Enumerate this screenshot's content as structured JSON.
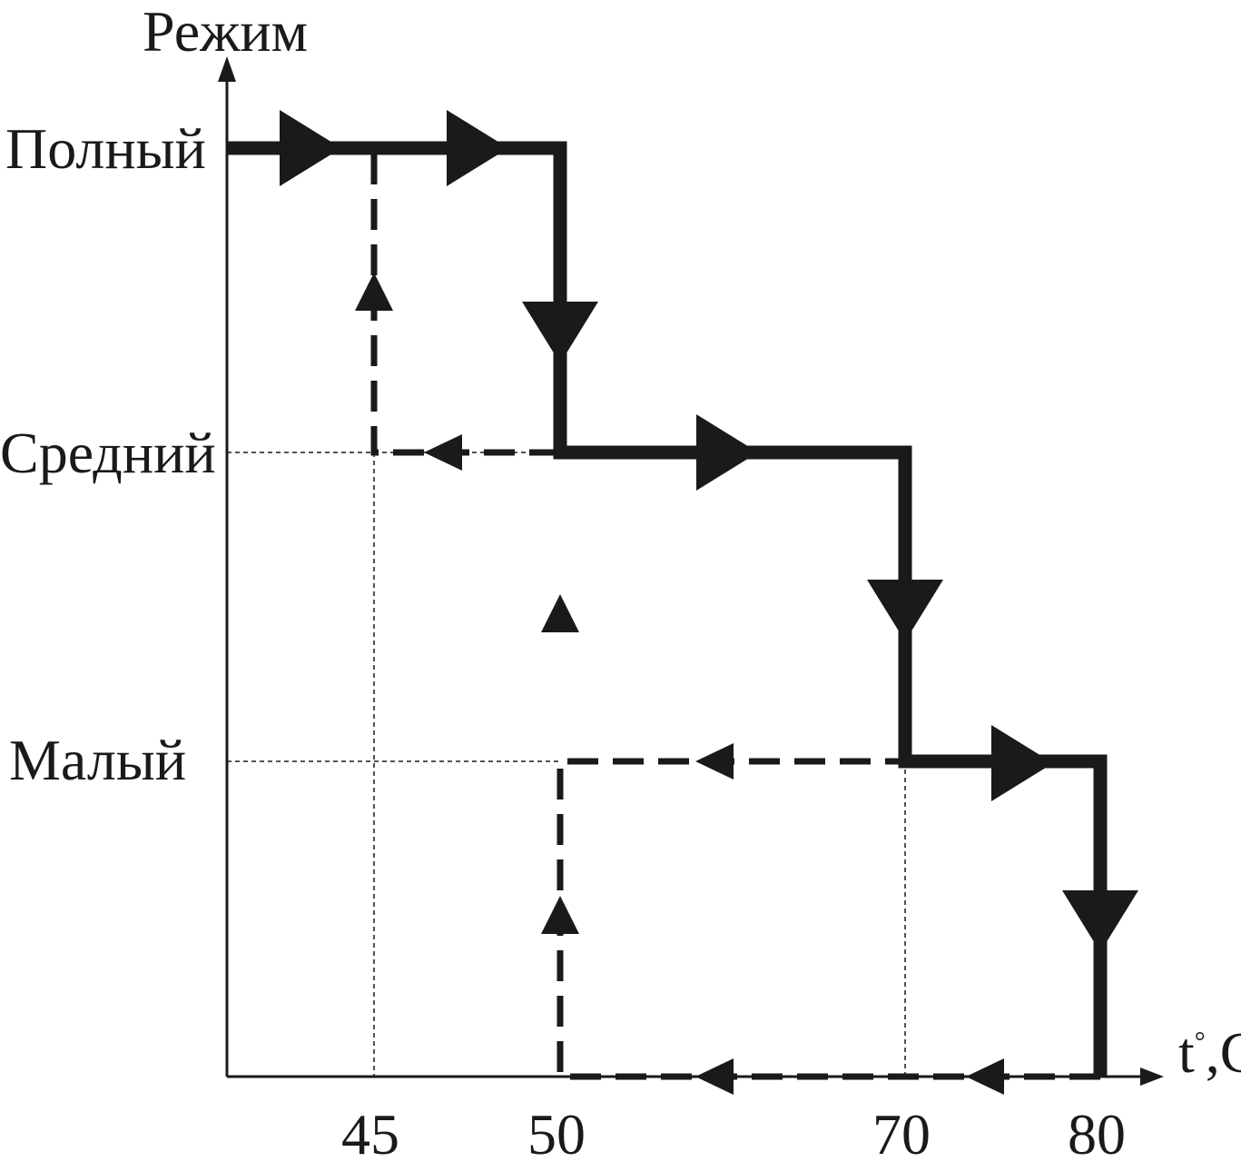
{
  "chart_data": {
    "type": "line",
    "ylabel": "Режим",
    "xlabel": "t",
    "xlabel_unit": "°",
    "xlabel_suffix": ",C",
    "y_categories": [
      "Малый",
      "Средний",
      "Полный"
    ],
    "x_ticks": [
      "45",
      "50",
      "70",
      "80"
    ],
    "x_tick_values": [
      45,
      50,
      70,
      80
    ],
    "x_range": [
      40,
      83
    ],
    "series": [
      {
        "style": "solid-thick",
        "direction": "increasing temperature",
        "points": [
          [
            40,
            "Полный"
          ],
          [
            55,
            "Полный"
          ],
          [
            55,
            "Средний"
          ],
          [
            70,
            "Средний"
          ],
          [
            70,
            "Малый"
          ],
          [
            80,
            "Малый"
          ],
          [
            80,
            "off"
          ]
        ]
      },
      {
        "style": "dashed",
        "direction": "decreasing temperature",
        "points": [
          [
            80,
            "off"
          ],
          [
            50,
            "off"
          ],
          [
            50,
            "Малый"
          ],
          [
            70,
            "Малый"
          ]
        ]
      },
      {
        "style": "dashed",
        "direction": "decreasing temperature",
        "points": [
          [
            50,
            "Средний"
          ],
          [
            45,
            "Средний"
          ],
          [
            45,
            "Полный"
          ]
        ]
      }
    ],
    "grid": "dotted guide lines at switching points",
    "colors": {
      "lines": "#1a1a1a",
      "background": "#ffffff"
    }
  }
}
